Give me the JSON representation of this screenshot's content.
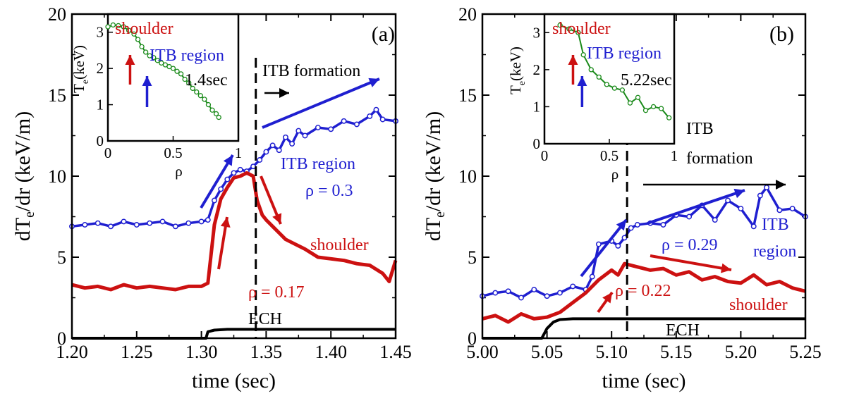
{
  "chart_data": [
    {
      "type": "line",
      "panel_label": "(a)",
      "xlabel": "time (sec)",
      "ylabel": "dT",
      "ylabel_sub": "e",
      "ylabel_rest": "/dr (keV/m)",
      "xlim": [
        1.2,
        1.45
      ],
      "ylim": [
        0,
        20
      ],
      "xticks": [
        "1.20",
        "1.25",
        "1.30",
        "1.35",
        "1.40",
        "1.45"
      ],
      "yticks": [
        "0",
        "5",
        "10",
        "15",
        "20"
      ],
      "ech_time": 1.342,
      "series": [
        {
          "name": "ITB region",
          "color": "#1f1fd0",
          "label_lines": [
            "ITB region",
            "ρ = 0.3"
          ],
          "x": [
            1.2,
            1.21,
            1.22,
            1.23,
            1.24,
            1.25,
            1.26,
            1.27,
            1.28,
            1.29,
            1.3,
            1.305,
            1.31,
            1.315,
            1.32,
            1.325,
            1.33,
            1.335,
            1.34,
            1.345,
            1.35,
            1.355,
            1.36,
            1.365,
            1.37,
            1.375,
            1.38,
            1.39,
            1.4,
            1.41,
            1.42,
            1.43,
            1.435,
            1.44,
            1.45
          ],
          "y": [
            6.9,
            7.0,
            7.1,
            6.9,
            7.2,
            7.0,
            7.1,
            7.2,
            6.9,
            7.1,
            7.2,
            7.3,
            8.5,
            9.2,
            9.8,
            10.2,
            10.4,
            10.3,
            10.6,
            11.0,
            11.5,
            11.9,
            11.6,
            12.4,
            12.0,
            12.8,
            12.5,
            13.0,
            12.9,
            13.4,
            13.2,
            13.7,
            14.1,
            13.5,
            13.4
          ]
        },
        {
          "name": "shoulder",
          "color": "#cc1111",
          "label_lines": [
            "shoulder",
            "ρ = 0.17"
          ],
          "x": [
            1.2,
            1.21,
            1.22,
            1.23,
            1.24,
            1.25,
            1.26,
            1.27,
            1.28,
            1.29,
            1.3,
            1.305,
            1.31,
            1.315,
            1.32,
            1.325,
            1.33,
            1.335,
            1.34,
            1.343,
            1.347,
            1.35,
            1.355,
            1.36,
            1.365,
            1.37,
            1.38,
            1.39,
            1.4,
            1.41,
            1.42,
            1.43,
            1.44,
            1.445,
            1.45
          ],
          "y": [
            3.3,
            3.1,
            3.2,
            3.0,
            3.3,
            3.1,
            3.2,
            3.1,
            3.0,
            3.2,
            3.2,
            3.4,
            7.0,
            8.6,
            9.3,
            9.9,
            10.0,
            10.2,
            10.0,
            8.5,
            7.6,
            7.3,
            6.9,
            6.5,
            6.1,
            5.9,
            5.5,
            5.0,
            4.9,
            4.8,
            4.6,
            4.5,
            4.0,
            3.5,
            4.8
          ]
        },
        {
          "name": "ECH",
          "color": "#000000",
          "label_lines": [
            "ECH"
          ],
          "x": [
            1.2,
            1.3035,
            1.305,
            1.31,
            1.32,
            1.45
          ],
          "y": [
            0,
            0,
            0.4,
            0.5,
            0.55,
            0.55
          ]
        }
      ],
      "annotations": [
        "ITB formation"
      ],
      "inset": {
        "title": "1.4sec",
        "xlabel": "ρ",
        "ylabel": "T",
        "ylabel_sub": "e",
        "ylabel_rest": "(keV)",
        "xlim": [
          0,
          1
        ],
        "ylim": [
          0,
          3.5
        ],
        "xticks": [
          "0",
          "0.5",
          "1"
        ],
        "yticks": [
          "0",
          "1",
          "2",
          "3"
        ],
        "labels": [
          "shoulder",
          "ITB region"
        ],
        "arrow_x": [
          0.17,
          0.3
        ],
        "x": [
          0.0,
          0.04,
          0.08,
          0.12,
          0.16,
          0.2,
          0.23,
          0.26,
          0.29,
          0.32,
          0.35,
          0.38,
          0.41,
          0.44,
          0.47,
          0.5,
          0.53,
          0.56,
          0.59,
          0.62,
          0.65,
          0.68,
          0.71,
          0.74,
          0.77,
          0.8,
          0.83,
          0.85
        ],
        "y": [
          3.15,
          3.2,
          3.18,
          3.15,
          3.05,
          2.95,
          2.8,
          2.6,
          2.45,
          2.35,
          2.3,
          2.22,
          2.15,
          2.1,
          2.05,
          2.0,
          1.92,
          1.85,
          1.7,
          1.6,
          1.45,
          1.35,
          1.25,
          1.15,
          1.0,
          0.85,
          0.75,
          0.65
        ]
      }
    },
    {
      "type": "line",
      "panel_label": "(b)",
      "xlabel": "time (sec)",
      "ylabel": "dT",
      "ylabel_sub": "e",
      "ylabel_rest": "/dr (keV/m)",
      "xlim": [
        5.0,
        5.25
      ],
      "ylim": [
        0,
        20
      ],
      "xticks": [
        "5.00",
        "5.05",
        "5.10",
        "5.15",
        "5.20",
        "5.25"
      ],
      "yticks": [
        "0",
        "5",
        "10",
        "15",
        "20"
      ],
      "ech_time": 5.112,
      "series": [
        {
          "name": "ITB region",
          "color": "#1f1fd0",
          "label_lines": [
            "ITB",
            "region",
            "ρ = 0.29"
          ],
          "x": [
            5.0,
            5.01,
            5.02,
            5.03,
            5.04,
            5.05,
            5.06,
            5.07,
            5.08,
            5.085,
            5.09,
            5.1,
            5.105,
            5.11,
            5.115,
            5.12,
            5.13,
            5.14,
            5.15,
            5.16,
            5.17,
            5.18,
            5.19,
            5.2,
            5.21,
            5.215,
            5.22,
            5.23,
            5.24,
            5.25
          ],
          "y": [
            2.6,
            2.8,
            2.9,
            2.5,
            3.0,
            2.6,
            2.8,
            3.2,
            3.0,
            3.8,
            5.8,
            6.0,
            5.7,
            6.2,
            6.8,
            7.0,
            7.1,
            7.0,
            7.6,
            7.5,
            8.2,
            7.3,
            8.5,
            8.0,
            6.9,
            8.8,
            9.3,
            7.9,
            8.0,
            7.5
          ]
        },
        {
          "name": "shoulder",
          "color": "#cc1111",
          "label_lines": [
            "shoulder",
            "ρ = 0.22"
          ],
          "x": [
            5.0,
            5.01,
            5.02,
            5.03,
            5.04,
            5.05,
            5.06,
            5.07,
            5.08,
            5.09,
            5.1,
            5.105,
            5.11,
            5.12,
            5.13,
            5.14,
            5.15,
            5.16,
            5.17,
            5.18,
            5.19,
            5.2,
            5.21,
            5.22,
            5.23,
            5.24,
            5.25
          ],
          "y": [
            1.2,
            1.4,
            1.0,
            1.5,
            1.2,
            1.3,
            1.6,
            2.2,
            2.8,
            3.6,
            4.2,
            3.9,
            4.6,
            4.4,
            4.2,
            4.3,
            3.9,
            4.1,
            3.6,
            3.8,
            3.5,
            3.4,
            3.9,
            3.3,
            3.5,
            3.1,
            2.9
          ]
        },
        {
          "name": "ECH",
          "color": "#000000",
          "label_lines": [
            "ECH"
          ],
          "x": [
            5.0,
            5.046,
            5.05,
            5.055,
            5.06,
            5.07,
            5.25
          ],
          "y": [
            0,
            0,
            0.6,
            1.0,
            1.15,
            1.2,
            1.2
          ]
        }
      ],
      "annotations": [
        "ITB",
        "formation"
      ],
      "inset": {
        "title": "5.22sec",
        "xlabel": "ρ",
        "ylabel": "T",
        "ylabel_sub": "e",
        "ylabel_rest": "(keV)",
        "xlim": [
          0,
          1
        ],
        "ylim": [
          0,
          3.5
        ],
        "xticks": [
          "0",
          "0.5",
          "1"
        ],
        "yticks": [
          "0",
          "1",
          "2",
          "3"
        ],
        "labels": [
          "shoulder",
          "ITB region"
        ],
        "arrow_x": [
          0.22,
          0.29
        ],
        "x": [
          0.12,
          0.19,
          0.26,
          0.3,
          0.36,
          0.42,
          0.48,
          0.54,
          0.6,
          0.66,
          0.72,
          0.78,
          0.84,
          0.9,
          0.96
        ],
        "y": [
          3.2,
          3.1,
          3.0,
          2.4,
          2.0,
          1.8,
          1.6,
          1.5,
          1.45,
          1.1,
          1.25,
          0.9,
          1.0,
          0.95,
          0.7
        ]
      }
    }
  ]
}
